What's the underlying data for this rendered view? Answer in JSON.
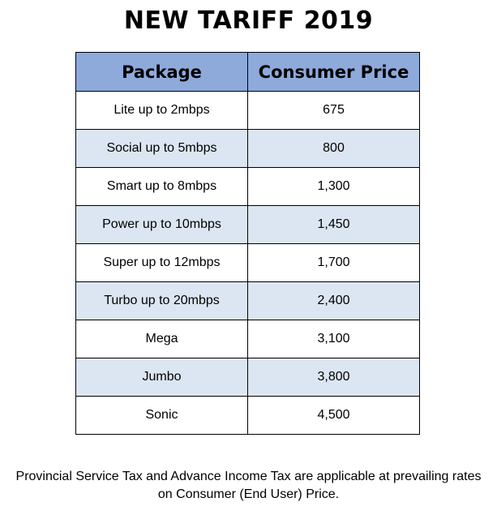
{
  "title": "NEW TARIFF 2019",
  "table": {
    "headers": [
      "Package",
      "Consumer Price"
    ],
    "rows": [
      {
        "package": "Lite up to 2mbps",
        "price": "675"
      },
      {
        "package": "Social up to 5mbps",
        "price": "800"
      },
      {
        "package": "Smart up to 8mbps",
        "price": "1,300"
      },
      {
        "package": "Power up to 10mbps",
        "price": "1,450"
      },
      {
        "package": "Super up to 12mbps",
        "price": "1,700"
      },
      {
        "package": "Turbo up to 20mbps",
        "price": "2,400"
      },
      {
        "package": "Mega",
        "price": "3,100"
      },
      {
        "package": "Jumbo",
        "price": "3,800"
      },
      {
        "package": "Sonic",
        "price": "4,500"
      }
    ]
  },
  "note": {
    "line1": "Provincial Service Tax and Advance Income Tax are applicable at prevailing rates",
    "line2": "on Consumer (End User) Price."
  },
  "colors": {
    "header_bg": "#8eaadb",
    "alt_row_bg": "#dce6f2",
    "border": "#000000"
  }
}
